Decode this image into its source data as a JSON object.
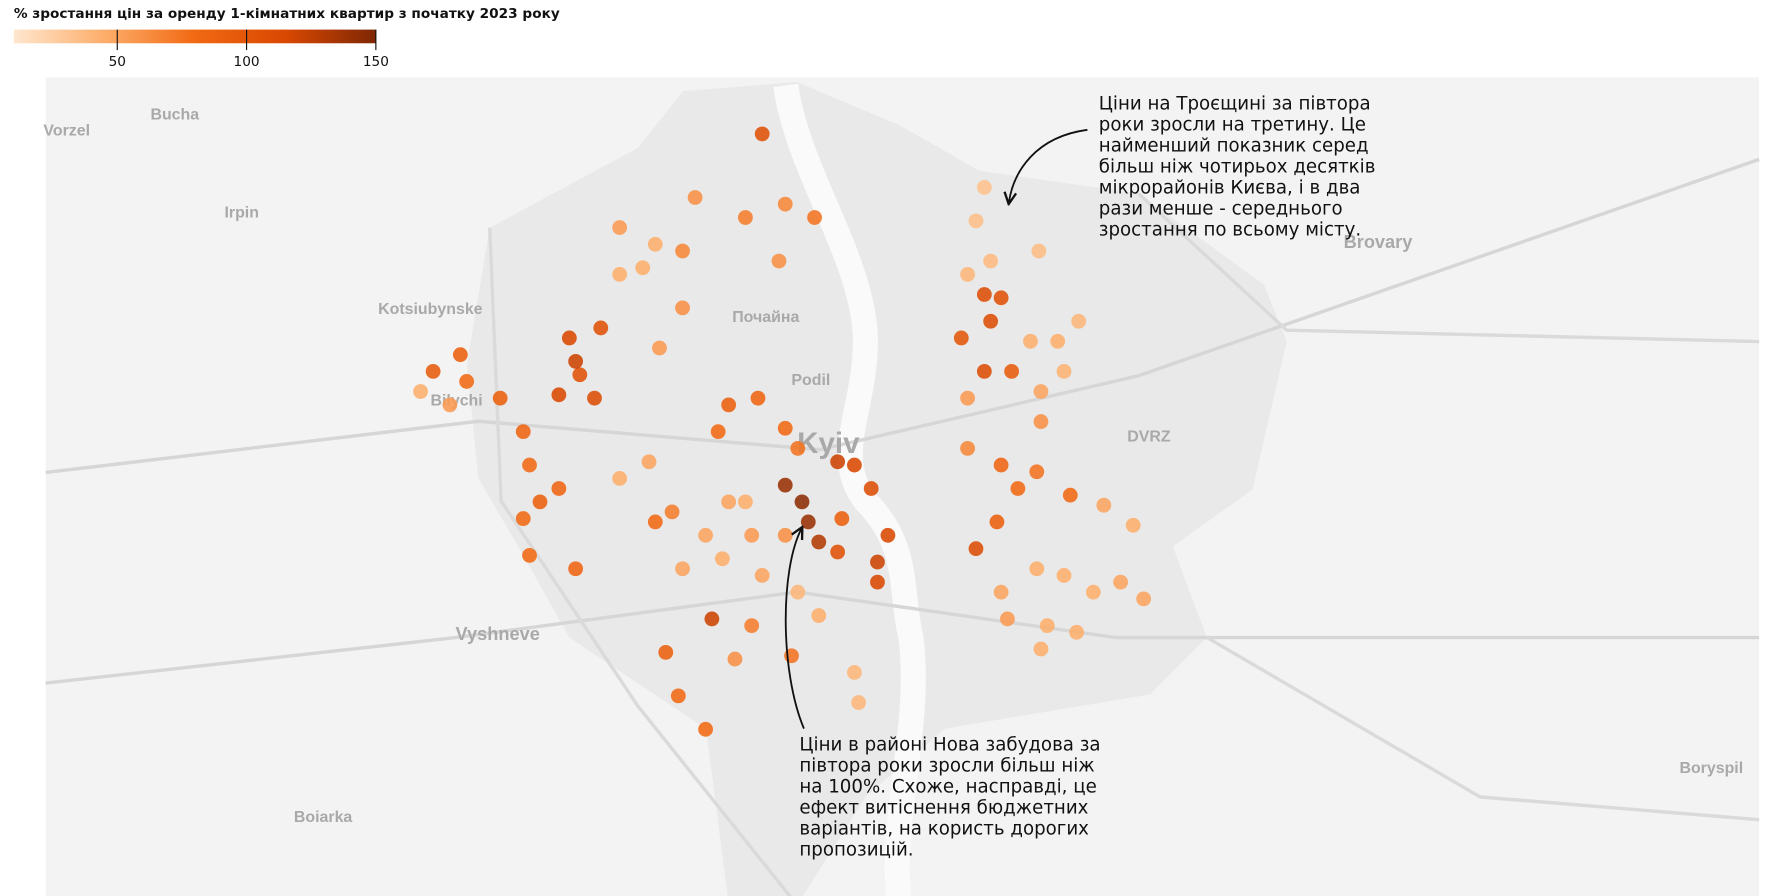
{
  "legend": {
    "title": "% зростання цін за оренду 1-кімнатних квартир з початку 2023 року",
    "colorlim": [
      10,
      150
    ],
    "ticks": [
      50,
      100,
      150
    ],
    "colorscale": [
      "#fee6ce",
      "#fdae6b",
      "#f16913",
      "#d94801",
      "#7f2704"
    ]
  },
  "places": [
    "Bucha",
    "Vorzel",
    "Irpin",
    "Kotsiubynske",
    "Bilychi",
    "Почайна",
    "Podil",
    "Kyiv",
    "DVRZ",
    "Brovary",
    "Vyshneve",
    "Boiarka",
    "Boryspil"
  ],
  "annotations": [
    {
      "lines": [
        "Ціни на Троєщині за півтора",
        "роки зросли на третину. Це",
        "найменший показник серед",
        "більш ніж чотирьох десятків",
        "мікрорайонів Києва, і в два",
        "рази менше - середнього",
        "зростання по всьому місту."
      ]
    },
    {
      "lines": [
        "Ціни в районі Нова забудова за",
        "півтора роки зросли більш ніж",
        "на 100%. Схоже, насправді, це",
        "ефект витіснення бюджетних",
        "варіантів, на користь дорогих",
        "пропозицій."
      ]
    }
  ],
  "map": {
    "type": "dot-map",
    "points": {
      "lon": [
        30.607,
        30.603,
        30.61,
        30.633,
        30.599,
        30.629,
        30.642,
        30.652,
        30.645,
        30.634,
        30.599,
        30.607,
        30.615,
        30.61,
        30.596,
        30.607,
        30.62,
        30.615,
        30.623,
        30.632,
        30.599,
        30.634,
        30.648,
        30.613,
        30.603,
        30.664,
        30.678,
        30.632,
        30.645,
        30.659,
        30.672,
        30.637,
        30.651,
        30.634,
        30.618,
        30.615,
        30.683,
        30.512,
        30.52,
        30.523,
        30.528,
        30.537,
        30.545,
        30.553,
        30.561,
        30.556,
        30.556,
        30.537,
        30.539,
        30.485,
        30.499,
        30.48,
        30.512,
        30.518,
        30.485,
        30.493,
        30.474,
        30.496,
        30.458,
        30.45,
        30.433,
        30.447,
        30.469,
        30.493,
        30.512,
        30.509,
        30.501,
        30.526,
        30.463,
        30.433,
        30.433,
        30.444,
        30.45,
        30.463,
        30.452,
        30.409,
        30.424,
        30.414,
        30.421,
        30.404,
        30.412,
        30.376,
        30.387,
        30.39,
        30.387,
        30.404,
        30.395,
        30.412,
        30.39,
        30.344,
        30.338,
        30.352,
        30.36,
        30.357,
        30.463,
        30.482,
        30.501,
        30.518,
        30.528,
        30.545,
        30.547,
        30.477,
        30.496,
        30.455,
        30.461,
        30.474,
        30.488,
        30.515,
        30.512
      ],
      "lat": [
        50.523,
        50.513,
        50.501,
        50.504,
        50.497,
        50.477,
        50.477,
        50.483,
        50.468,
        50.462,
        50.46,
        50.491,
        50.49,
        50.483,
        50.478,
        50.468,
        50.468,
        50.44,
        50.433,
        50.438,
        50.445,
        50.453,
        50.431,
        50.423,
        50.415,
        50.428,
        50.422,
        50.409,
        50.407,
        50.402,
        50.405,
        50.392,
        50.39,
        50.385,
        50.394,
        50.402,
        50.4,
        50.434,
        50.429,
        50.423,
        50.417,
        50.441,
        50.44,
        50.433,
        50.419,
        50.411,
        50.405,
        50.414,
        50.424,
        50.458,
        50.46,
        50.45,
        50.451,
        50.445,
        50.429,
        50.429,
        50.419,
        50.419,
        50.426,
        50.423,
        50.436,
        50.441,
        50.52,
        50.514,
        50.518,
        50.501,
        50.539,
        50.514,
        50.504,
        50.511,
        50.497,
        50.499,
        50.506,
        50.487,
        50.475,
        50.478,
        50.481,
        50.467,
        50.46,
        50.461,
        50.471,
        50.46,
        50.45,
        50.44,
        50.424,
        50.433,
        50.429,
        50.409,
        50.413,
        50.468,
        50.462,
        50.458,
        50.465,
        50.473,
        50.409,
        50.412,
        50.407,
        50.402,
        50.395,
        50.378,
        50.369,
        50.394,
        50.392,
        50.384,
        50.371,
        50.361,
        50.382,
        50.383,
        50.419
      ],
      "values": [
        33,
        35,
        38,
        36,
        40,
        45,
        45,
        40,
        42,
        50,
        55,
        110,
        105,
        110,
        100,
        110,
        95,
        85,
        80,
        75,
        65,
        60,
        80,
        90,
        110,
        50,
        45,
        45,
        45,
        45,
        50,
        45,
        45,
        45,
        55,
        50,
        50,
        140,
        145,
        140,
        130,
        120,
        115,
        110,
        115,
        120,
        115,
        105,
        90,
        90,
        85,
        80,
        80,
        75,
        50,
        45,
        50,
        55,
        70,
        80,
        45,
        50,
        60,
        70,
        65,
        60,
        105,
        75,
        65,
        55,
        45,
        45,
        45,
        60,
        55,
        115,
        105,
        105,
        110,
        115,
        120,
        90,
        85,
        80,
        80,
        85,
        90,
        85,
        80,
        95,
        45,
        55,
        80,
        90,
        50,
        45,
        50,
        40,
        45,
        40,
        40,
        120,
        70,
        90,
        80,
        80,
        60,
        75,
        60
      ]
    }
  }
}
